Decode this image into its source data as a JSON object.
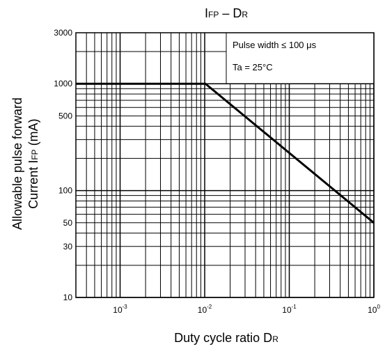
{
  "chart_data": {
    "type": "line",
    "title": {
      "main": "I",
      "sub": "FP",
      "dash": " – D",
      "sub2": "R"
    },
    "xlabel": {
      "main": "Duty cycle ratio   D",
      "sub": "R"
    },
    "ylabel": {
      "line1": "Allowable pulse forward",
      "line2a": "Current   I",
      "line2sub": "FP",
      "line2b": "   (mA)"
    },
    "x_scale": "log",
    "y_scale": "log",
    "xlim": [
      0.0003,
      1
    ],
    "ylim": [
      10,
      3000
    ],
    "x_ticks": [
      {
        "value": 0.001,
        "base": "10",
        "exp": "-3"
      },
      {
        "value": 0.01,
        "base": "10",
        "exp": "-2"
      },
      {
        "value": 0.1,
        "base": "10",
        "exp": "-1"
      },
      {
        "value": 1,
        "base": "10",
        "exp": "0"
      }
    ],
    "y_ticks": [
      {
        "value": 3000,
        "label": "3000"
      },
      {
        "value": 1000,
        "label": "1000"
      },
      {
        "value": 500,
        "label": "500"
      },
      {
        "value": 100,
        "label": "100"
      },
      {
        "value": 50,
        "label": "50"
      },
      {
        "value": 30,
        "label": "30"
      },
      {
        "value": 10,
        "label": "10"
      }
    ],
    "grid": true,
    "series": [
      {
        "x": [
          0.0003,
          0.0102,
          1
        ],
        "y": [
          1000,
          1000,
          50
        ]
      }
    ],
    "annotations": [
      "Pulse width ≤ 100 μs",
      "Ta = 25°C"
    ],
    "colors": {
      "line": "#000000",
      "grid": "#000000",
      "background": "#ffffff"
    }
  }
}
